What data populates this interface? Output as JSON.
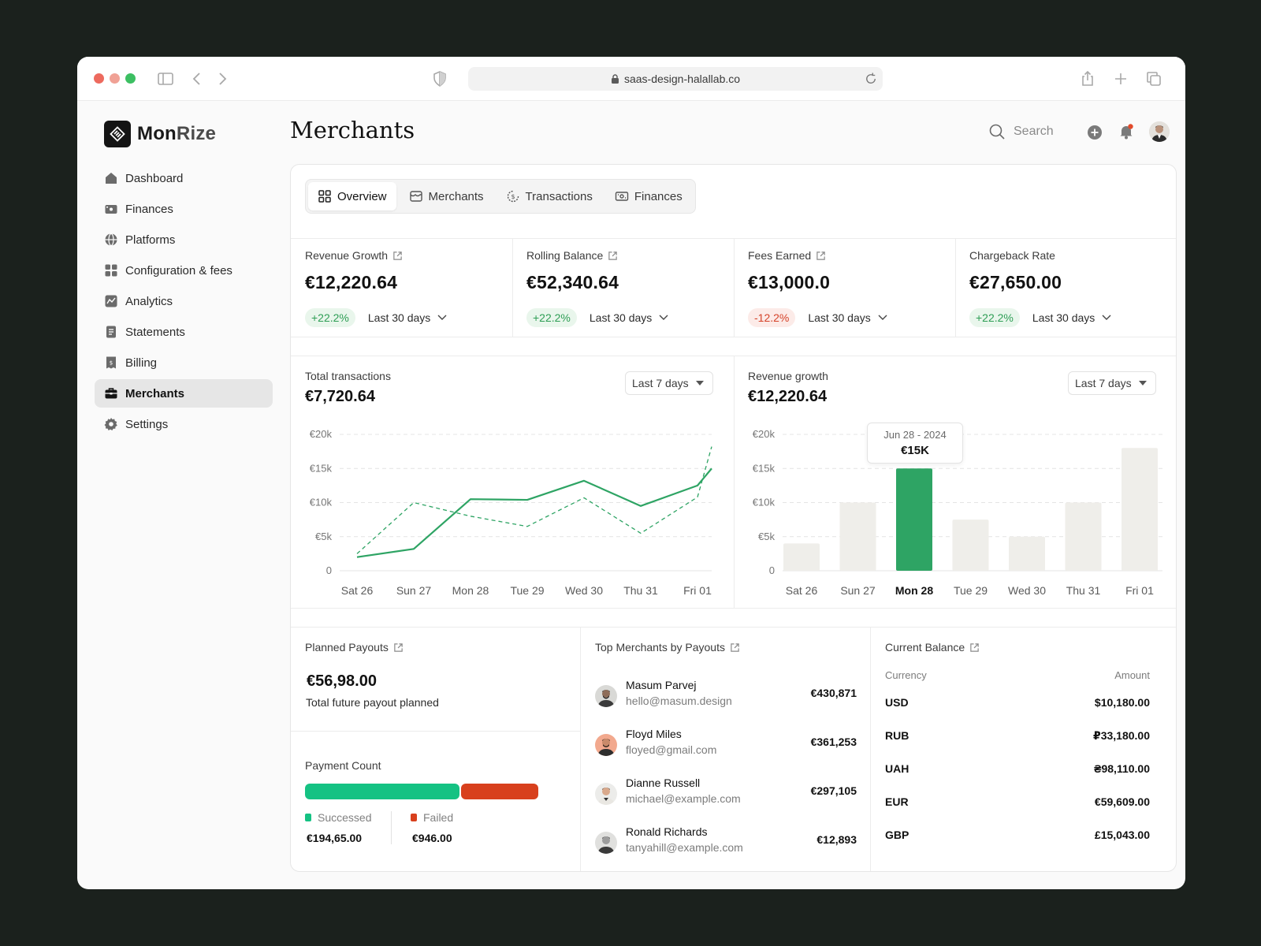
{
  "browser": {
    "url": "saas-design-halallab.co"
  },
  "brand": {
    "name_part1": "Mon",
    "name_part2": "Rize"
  },
  "sidebar": {
    "items": [
      {
        "label": "Dashboard",
        "icon": "home-icon"
      },
      {
        "label": "Finances",
        "icon": "wallet-icon"
      },
      {
        "label": "Platforms",
        "icon": "globe-icon"
      },
      {
        "label": "Configuration & fees",
        "icon": "grid-icon"
      },
      {
        "label": "Analytics",
        "icon": "analytics-icon"
      },
      {
        "label": "Statements",
        "icon": "document-icon"
      },
      {
        "label": "Billing",
        "icon": "receipt-icon"
      },
      {
        "label": "Merchants",
        "icon": "briefcase-icon",
        "active": true
      },
      {
        "label": "Settings",
        "icon": "gear-icon"
      }
    ]
  },
  "header": {
    "title": "Merchants",
    "search_placeholder": "Search"
  },
  "tabs": [
    {
      "label": "Overview",
      "active": true
    },
    {
      "label": "Merchants"
    },
    {
      "label": "Transactions"
    },
    {
      "label": "Finances"
    }
  ],
  "stats": [
    {
      "label": "Revenue Growth",
      "value": "€12,220.64",
      "change": "+22.2%",
      "trend": "up",
      "period": "Last 30 days"
    },
    {
      "label": "Rolling Balance",
      "value": "€52,340.64",
      "change": "+22.2%",
      "trend": "up",
      "period": "Last 30 days"
    },
    {
      "label": "Fees Earned",
      "value": "€13,000.0",
      "change": "-12.2%",
      "trend": "down",
      "period": "Last 30 days"
    },
    {
      "label": "Chargeback Rate",
      "value": "€27,650.00",
      "change": "+22.2%",
      "trend": "up",
      "period": "Last 30 days"
    }
  ],
  "transactions_panel": {
    "title": "Total transactions",
    "value": "€7,720.64",
    "period": "Last 7 days"
  },
  "revenue_panel": {
    "title": "Revenue growth",
    "value": "€12,220.64",
    "period": "Last 7 days",
    "tooltip_date": "Jun 28 - 2024",
    "tooltip_value": "€15K"
  },
  "chart_data": [
    {
      "type": "line",
      "title": "Total transactions",
      "categories": [
        "Sat 26",
        "Sun 27",
        "Mon 28",
        "Tue 29",
        "Wed 30",
        "Thu 31",
        "Fri 01"
      ],
      "y_tick_labels": [
        "€20k",
        "€15k",
        "€10k",
        "€5k",
        "0"
      ],
      "ylim": [
        0,
        20000
      ],
      "series": [
        {
          "name": "current",
          "style": "solid",
          "x": [
            0,
            1,
            2,
            3,
            4,
            5,
            6,
            6.45
          ],
          "values": [
            2000,
            3200,
            10500,
            10400,
            13200,
            9500,
            12500,
            15000
          ]
        },
        {
          "name": "previous",
          "style": "dashed",
          "x": [
            0,
            1,
            2,
            3,
            4,
            5,
            6,
            6.45
          ],
          "values": [
            2500,
            10000,
            8000,
            6500,
            10700,
            5500,
            10800,
            18200
          ]
        }
      ],
      "color": "#2ea464"
    },
    {
      "type": "bar",
      "title": "Revenue growth",
      "categories": [
        "Sat 26",
        "Sun 27",
        "Mon 28",
        "Tue 29",
        "Wed 30",
        "Thu 31",
        "Fri 01"
      ],
      "values": [
        4000,
        10000,
        15000,
        7500,
        5000,
        10000,
        18000
      ],
      "highlight_index": 2,
      "y_tick_labels": [
        "€20k",
        "€15k",
        "€10k",
        "€5k",
        "0"
      ],
      "ylim": [
        0,
        20000
      ],
      "bar_color": "#efeeea",
      "highlight_color": "#2ea464"
    }
  ],
  "planned_payouts": {
    "title": "Planned Payouts",
    "value": "€56,98.00",
    "subtitle": "Total future payout planned"
  },
  "payment_count": {
    "title": "Payment Count",
    "success_share": 0.665,
    "successed_label": "Successed",
    "successed_value": "€194,65.00",
    "failed_label": "Failed",
    "failed_value": "€946.00",
    "success_color": "#15c283",
    "failed_color": "#d8401d"
  },
  "top_merchants": {
    "title": "Top Merchants by Payouts",
    "rows": [
      {
        "name": "Masum Parvej",
        "email": "hello@masum.design",
        "amount": "€430,871"
      },
      {
        "name": "Floyd Miles",
        "email": "floyed@gmail.com",
        "amount": "€361,253"
      },
      {
        "name": "Dianne Russell",
        "email": "michael@example.com",
        "amount": "€297,105"
      },
      {
        "name": "Ronald Richards",
        "email": "tanyahill@example.com",
        "amount": "€12,893"
      }
    ]
  },
  "current_balance": {
    "title": "Current Balance",
    "currency_header": "Currency",
    "amount_header": "Amount",
    "rows": [
      {
        "currency": "USD",
        "amount": "$10,180.00"
      },
      {
        "currency": "RUB",
        "amount": "₽33,180.00"
      },
      {
        "currency": "UAH",
        "amount": "₴98,110.00"
      },
      {
        "currency": "EUR",
        "amount": "€59,609.00"
      },
      {
        "currency": "GBP",
        "amount": "£15,043.00"
      }
    ]
  }
}
